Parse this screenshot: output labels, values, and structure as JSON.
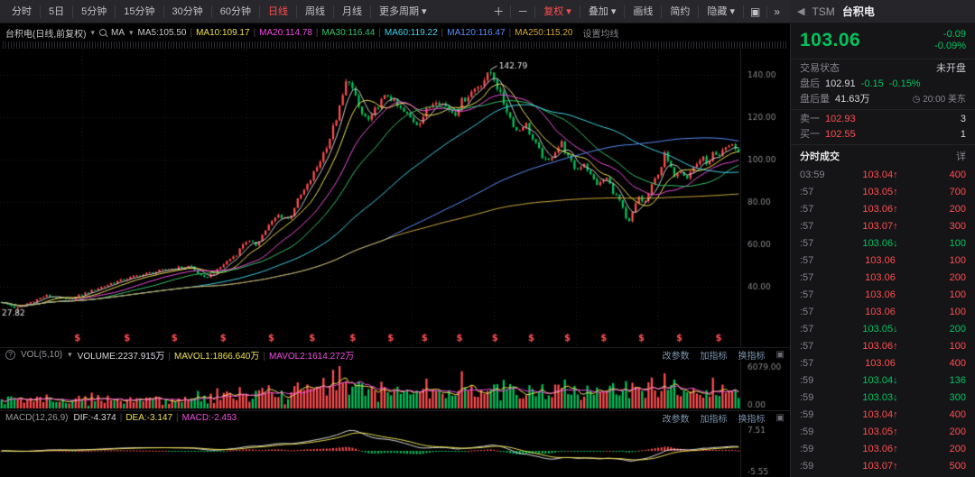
{
  "colors": {
    "up": "#ff4d4f",
    "down": "#00c35c",
    "yellow": "#f0e04e",
    "magenta": "#f04ee0",
    "link": "#7d93ad",
    "white_val": "#d8d8dc"
  },
  "icons": {
    "caret": "▾",
    "back": "◀",
    "clock": "◷",
    "help": "?",
    "expand": "▣",
    "collapse": "»",
    "up_arrow": "↑",
    "down_arrow": "↓"
  },
  "toolbar": {
    "periods": [
      {
        "label": "分时"
      },
      {
        "label": "5日"
      },
      {
        "label": "5分钟"
      },
      {
        "label": "15分钟"
      },
      {
        "label": "30分钟"
      },
      {
        "label": "60分钟"
      },
      {
        "label": "日线",
        "active": true
      },
      {
        "label": "周线"
      },
      {
        "label": "月线"
      },
      {
        "label": "更多周期",
        "caret": true
      }
    ],
    "tools": [
      {
        "label": "＋",
        "icon": true,
        "name": "zoom-in-button"
      },
      {
        "label": "－",
        "icon": true,
        "name": "zoom-out-button"
      },
      {
        "label": "复权",
        "caret": true,
        "accent": true,
        "name": "adjust-mode-dropdown"
      },
      {
        "label": "叠加",
        "caret": true,
        "name": "overlay-dropdown"
      },
      {
        "label": "画线",
        "name": "draw-lines-button"
      },
      {
        "label": "简约",
        "name": "simple-mode-button"
      },
      {
        "label": "隐藏",
        "caret": true,
        "name": "hide-dropdown"
      },
      {
        "label": "▣",
        "icon": true,
        "name": "panel-expand-icon"
      },
      {
        "label": "»",
        "icon": true,
        "name": "collapse-right-icon"
      }
    ]
  },
  "chart_header": {
    "title": "台积电(日线,前复权)",
    "ma_prefix": "MA",
    "ma_items": [
      {
        "label": "MA5:105.50",
        "color": "#c8c8cc"
      },
      {
        "label": "MA10:109.17",
        "color": "#f0e04e"
      },
      {
        "label": "MA20:114.78",
        "color": "#f04ee0"
      },
      {
        "label": "MA30:116.44",
        "color": "#35c46a"
      },
      {
        "label": "MA60:119.22",
        "color": "#3ed3e8"
      },
      {
        "label": "MA120:116.47",
        "color": "#5b8ff9"
      },
      {
        "label": "MA250:115.20",
        "color": "#cfa93a"
      }
    ],
    "settings": "设置均线"
  },
  "pane_links": [
    "改参数",
    "加指标",
    "换指标"
  ],
  "vol_header": {
    "name": "VOL(5,10)",
    "items": [
      {
        "label": "VOLUME:2237.915万",
        "color": "#d8d8dc"
      },
      {
        "label": "MAVOL1:1866.640万",
        "color": "#f0e04e"
      },
      {
        "label": "MAVOL2:1614.272万",
        "color": "#f04ee0"
      }
    ]
  },
  "macd_header": {
    "name": "MACD(12,26,9)",
    "items": [
      {
        "label": "DIF:-4.374",
        "color": "#d8d8dc"
      },
      {
        "label": "DEA:-3.147",
        "color": "#f0e04e"
      },
      {
        "label": "MACD:-2.453",
        "color": "#f04ee0"
      }
    ]
  },
  "chart_data": {
    "type": "candlestick",
    "symbol": "台积电",
    "period": "日线",
    "adjust": "前复权",
    "candle_count": 230,
    "y_ticks": [
      140,
      120,
      100,
      80,
      60,
      40
    ],
    "y_range": [
      24,
      150
    ],
    "peak_x": 0.665,
    "peak_value": 142.79,
    "low_x": 0.02,
    "low_value": 27.82,
    "dividend_glyph": "$",
    "dividend_marks": [
      0.104,
      0.171,
      0.235,
      0.301,
      0.366,
      0.421,
      0.476,
      0.527,
      0.573,
      0.62,
      0.668,
      0.717,
      0.766,
      0.815,
      0.866,
      0.917,
      0.97
    ],
    "price_path": [
      [
        0,
        33
      ],
      [
        0.02,
        30
      ],
      [
        0.06,
        36
      ],
      [
        0.09,
        34
      ],
      [
        0.12,
        38
      ],
      [
        0.15,
        42
      ],
      [
        0.18,
        45
      ],
      [
        0.22,
        48
      ],
      [
        0.256,
        50
      ],
      [
        0.274,
        44
      ],
      [
        0.29,
        47
      ],
      [
        0.305,
        52
      ],
      [
        0.32,
        56
      ],
      [
        0.33,
        62
      ],
      [
        0.345,
        60
      ],
      [
        0.36,
        68
      ],
      [
        0.375,
        74
      ],
      [
        0.39,
        72
      ],
      [
        0.4,
        80
      ],
      [
        0.415,
        88
      ],
      [
        0.43,
        98
      ],
      [
        0.445,
        110
      ],
      [
        0.46,
        126
      ],
      [
        0.47,
        140
      ],
      [
        0.478,
        131
      ],
      [
        0.488,
        122
      ],
      [
        0.5,
        118
      ],
      [
        0.51,
        126
      ],
      [
        0.525,
        131
      ],
      [
        0.535,
        126
      ],
      [
        0.55,
        121
      ],
      [
        0.565,
        117
      ],
      [
        0.578,
        124
      ],
      [
        0.59,
        129
      ],
      [
        0.6,
        126
      ],
      [
        0.615,
        122
      ],
      [
        0.625,
        128
      ],
      [
        0.64,
        133
      ],
      [
        0.655,
        138
      ],
      [
        0.665,
        142
      ],
      [
        0.675,
        132
      ],
      [
        0.69,
        120
      ],
      [
        0.7,
        113
      ],
      [
        0.71,
        118
      ],
      [
        0.72,
        110
      ],
      [
        0.73,
        104
      ],
      [
        0.74,
        98
      ],
      [
        0.75,
        104
      ],
      [
        0.76,
        108
      ],
      [
        0.77,
        100
      ],
      [
        0.78,
        95
      ],
      [
        0.79,
        99
      ],
      [
        0.8,
        92
      ],
      [
        0.81,
        88
      ],
      [
        0.82,
        92
      ],
      [
        0.83,
        85
      ],
      [
        0.84,
        80
      ],
      [
        0.845,
        74
      ],
      [
        0.85,
        69
      ],
      [
        0.857,
        76
      ],
      [
        0.865,
        83
      ],
      [
        0.872,
        79
      ],
      [
        0.88,
        86
      ],
      [
        0.888,
        92
      ],
      [
        0.895,
        97
      ],
      [
        0.9,
        103
      ],
      [
        0.906,
        97
      ],
      [
        0.912,
        93
      ],
      [
        0.92,
        96
      ],
      [
        0.93,
        92
      ],
      [
        0.94,
        97
      ],
      [
        0.95,
        101
      ],
      [
        0.96,
        98
      ],
      [
        0.965,
        103
      ],
      [
        0.972,
        100
      ],
      [
        0.98,
        105
      ],
      [
        0.99,
        108
      ],
      [
        1,
        103
      ]
    ],
    "ma_series": [
      {
        "window": 5,
        "color": "#c8c8cc"
      },
      {
        "window": 10,
        "color": "#f0e04e"
      },
      {
        "window": 20,
        "color": "#f04ee0"
      },
      {
        "window": 30,
        "color": "#35c46a"
      },
      {
        "window": 60,
        "color": "#3ed3e8"
      },
      {
        "window": 120,
        "color": "#5b8ff9"
      },
      {
        "window": 250,
        "color": "#cfa93a"
      }
    ],
    "volume_axis": {
      "max_label": "6079.00",
      "min_label": "0.00"
    },
    "macd_axis": {
      "max_label": "7.51",
      "min_label": "-5.55"
    }
  },
  "sidebar": {
    "ticker": "TSM",
    "name": "台积电",
    "price": "103.06",
    "change": "-0.09",
    "change_pct": "-0.09%",
    "status_label": "交易状态",
    "status_value": "未开盘",
    "afterhours_label": "盘后",
    "afterhours_price": "102.91",
    "afterhours_change": "-0.15",
    "afterhours_pct": "-0.15%",
    "afterhours_vol_label": "盘后量",
    "afterhours_vol": "41.63万",
    "clock_time": "20:00 美东",
    "ask_label": "卖一",
    "ask_price": "102.93",
    "ask_size": "3",
    "bid_label": "买一",
    "bid_price": "102.55",
    "bid_size": "1",
    "tape_title": "分时成交",
    "tape_more": "详",
    "trades": [
      {
        "time": "03:59",
        "price": "103.04",
        "dir": "up",
        "vol": "400"
      },
      {
        "time": ":57",
        "price": "103.05",
        "dir": "up",
        "vol": "700"
      },
      {
        "time": ":57",
        "price": "103.06",
        "dir": "up",
        "vol": "200"
      },
      {
        "time": ":57",
        "price": "103.07",
        "dir": "up",
        "vol": "300"
      },
      {
        "time": ":57",
        "price": "103.06",
        "dir": "down",
        "vol": "100"
      },
      {
        "time": ":57",
        "price": "103.06",
        "dir": "flat",
        "vol": "100"
      },
      {
        "time": ":57",
        "price": "103.06",
        "dir": "flat",
        "vol": "200"
      },
      {
        "time": ":57",
        "price": "103.06",
        "dir": "flat",
        "vol": "100"
      },
      {
        "time": ":57",
        "price": "103.06",
        "dir": "flat",
        "vol": "100"
      },
      {
        "time": ":57",
        "price": "103.05",
        "dir": "down",
        "vol": "200"
      },
      {
        "time": ":57",
        "price": "103.06",
        "dir": "up",
        "vol": "100"
      },
      {
        "time": ":57",
        "price": "103.06",
        "dir": "flat",
        "vol": "400"
      },
      {
        "time": ":59",
        "price": "103.04",
        "dir": "down",
        "vol": "136"
      },
      {
        "time": ":59",
        "price": "103.03",
        "dir": "down",
        "vol": "300"
      },
      {
        "time": ":59",
        "price": "103.04",
        "dir": "up",
        "vol": "400"
      },
      {
        "time": ":59",
        "price": "103.05",
        "dir": "up",
        "vol": "200"
      },
      {
        "time": ":59",
        "price": "103.06",
        "dir": "up",
        "vol": "200"
      },
      {
        "time": ":59",
        "price": "103.07",
        "dir": "up",
        "vol": "500"
      }
    ]
  }
}
